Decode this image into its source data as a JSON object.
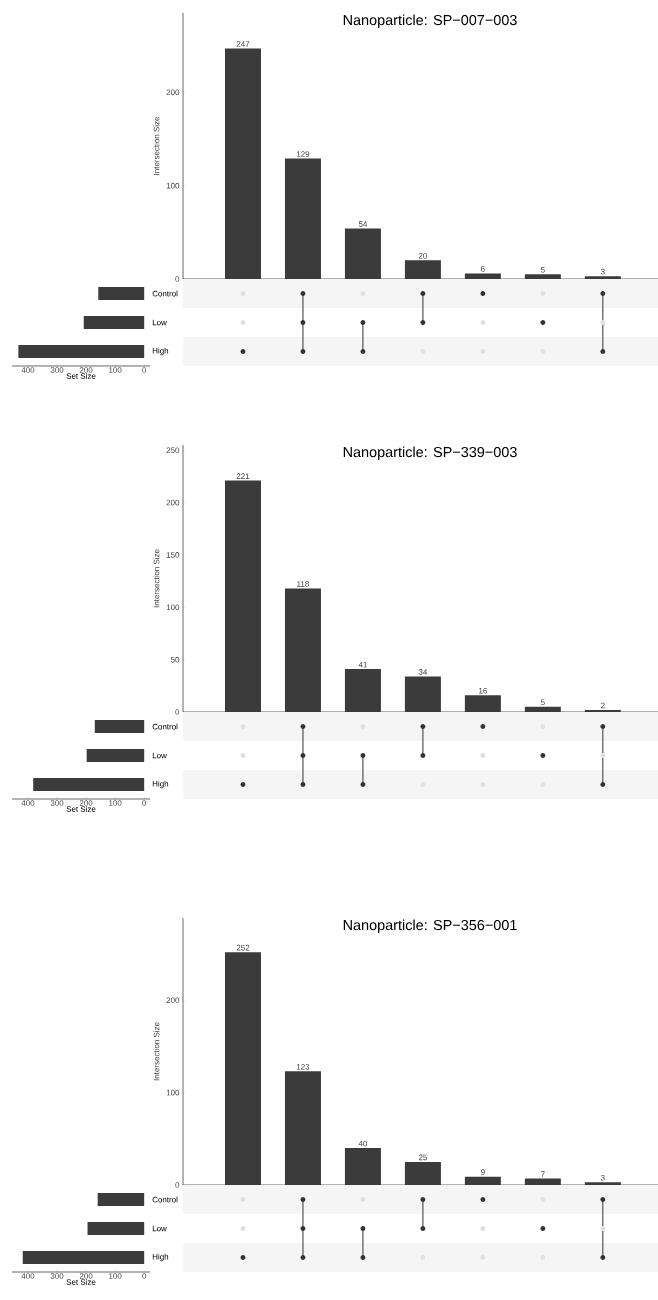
{
  "chart_data": [
    {
      "type": "bar",
      "title": "Nanoparticle: SP−007−003",
      "ylabel": "Intersection Size",
      "categories": [
        null,
        null,
        null,
        null,
        null,
        null,
        null
      ],
      "values": [
        247,
        129,
        54,
        20,
        6,
        5,
        3
      ],
      "color": "#3b3b3b",
      "ylim": [
        0,
        285
      ],
      "yticks": [
        0,
        100,
        200
      ],
      "data_labels": true
    },
    {
      "type": "bar",
      "orientation": "horizontal",
      "xlabel": "Set Size",
      "categories": [
        "Control",
        "Low",
        "High"
      ],
      "values": [
        158,
        208,
        433
      ],
      "color": "#3b3b3b",
      "xlim": [
        455,
        -20
      ],
      "xticks": [
        0,
        100,
        200,
        300,
        400
      ]
    },
    {
      "type": "bar",
      "title": "Nanoparticle: SP−339−003",
      "ylabel": "Intersection Size",
      "categories": [
        null,
        null,
        null,
        null,
        null,
        null,
        null
      ],
      "values": [
        221,
        118,
        41,
        34,
        16,
        5,
        2
      ],
      "color": "#3b3b3b",
      "ylim": [
        0,
        255
      ],
      "yticks": [
        0,
        50,
        100,
        150,
        200,
        250
      ],
      "data_labels": true
    },
    {
      "type": "bar",
      "orientation": "horizontal",
      "xlabel": "Set Size",
      "categories": [
        "Control",
        "Low",
        "High"
      ],
      "values": [
        170,
        198,
        382
      ],
      "color": "#3b3b3b",
      "xlim": [
        455,
        -20
      ],
      "xticks": [
        0,
        100,
        200,
        300,
        400
      ]
    },
    {
      "type": "bar",
      "title": "Nanoparticle: SP−356−001",
      "ylabel": "Intersection Size",
      "categories": [
        null,
        null,
        null,
        null,
        null,
        null,
        null
      ],
      "values": [
        252,
        123,
        40,
        25,
        9,
        7,
        3
      ],
      "color": "#3b3b3b",
      "ylim": [
        0,
        289
      ],
      "yticks": [
        0,
        100,
        200
      ],
      "data_labels": true
    },
    {
      "type": "bar",
      "orientation": "horizontal",
      "xlabel": "Set Size",
      "categories": [
        "Control",
        "Low",
        "High"
      ],
      "values": [
        160,
        195,
        418
      ],
      "color": "#3b3b3b",
      "xlim": [
        455,
        -20
      ],
      "xticks": [
        0,
        100,
        200,
        300,
        400
      ]
    }
  ]
}
